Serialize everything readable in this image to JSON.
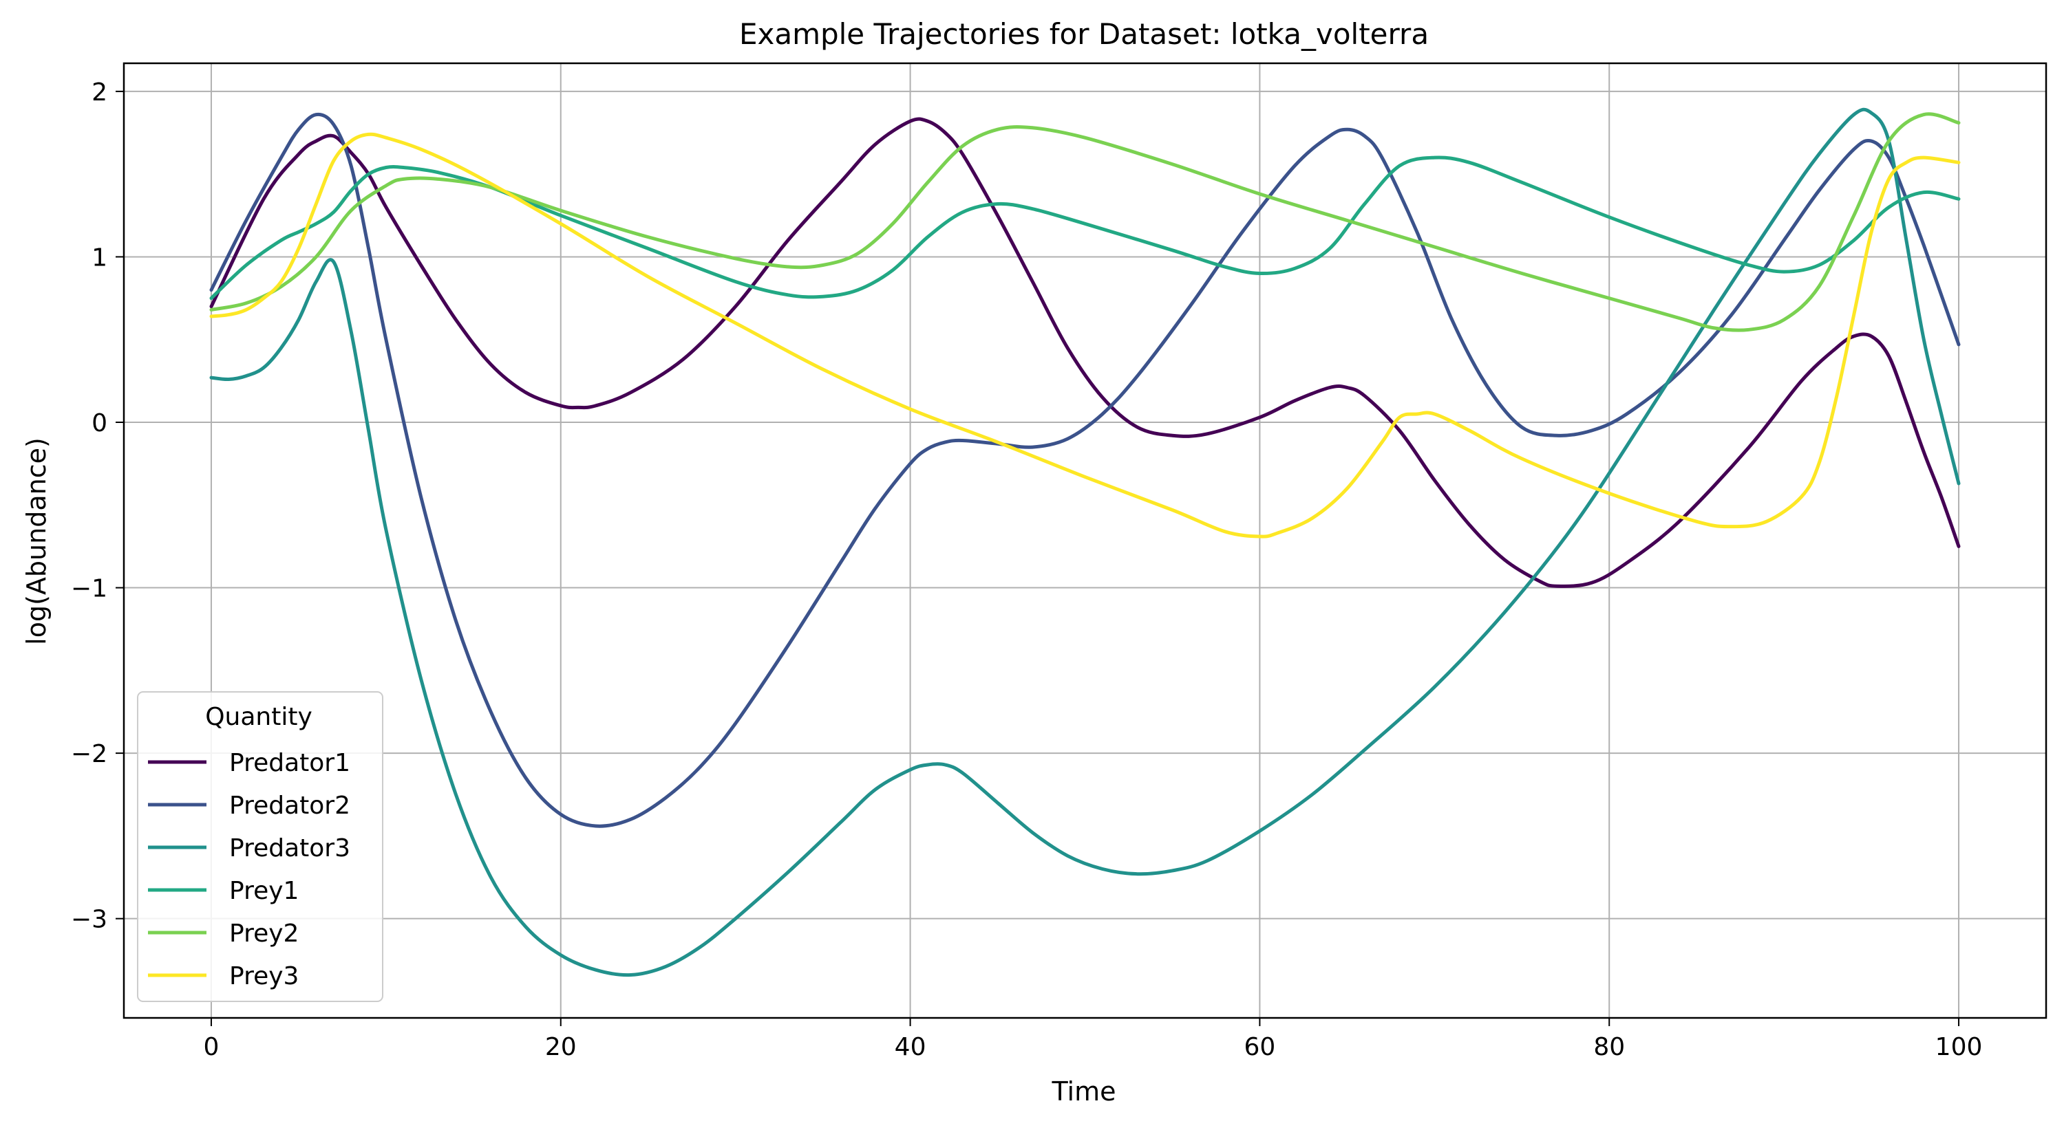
{
  "chart_data": {
    "type": "line",
    "title": "Example Trajectories for Dataset: lotka_volterra",
    "xlabel": "Time",
    "ylabel": "log(Abundance)",
    "xlim": [
      -5,
      105
    ],
    "ylim": [
      -3.6,
      2.17
    ],
    "xticks": [
      0,
      20,
      40,
      60,
      80,
      100
    ],
    "yticks": [
      -3,
      -2,
      -1,
      0,
      1,
      2
    ],
    "xtick_labels": [
      "0",
      "20",
      "40",
      "60",
      "80",
      "100"
    ],
    "ytick_labels": [
      "−3",
      "−2",
      "−1",
      "0",
      "1",
      "2"
    ],
    "grid": true,
    "legend": {
      "title": "Quantity",
      "position": "lower-left"
    },
    "series": [
      {
        "name": "Predator1",
        "color": "#440154",
        "points": [
          [
            0,
            0.7
          ],
          [
            3,
            1.35
          ],
          [
            5,
            1.62
          ],
          [
            6,
            1.7
          ],
          [
            7,
            1.73
          ],
          [
            8,
            1.63
          ],
          [
            9,
            1.5
          ],
          [
            10,
            1.3
          ],
          [
            12,
            0.95
          ],
          [
            14,
            0.62
          ],
          [
            16,
            0.35
          ],
          [
            18,
            0.18
          ],
          [
            20,
            0.1
          ],
          [
            21,
            0.09
          ],
          [
            22,
            0.1
          ],
          [
            24,
            0.18
          ],
          [
            27,
            0.38
          ],
          [
            30,
            0.7
          ],
          [
            33,
            1.1
          ],
          [
            36,
            1.45
          ],
          [
            38,
            1.68
          ],
          [
            40,
            1.82
          ],
          [
            41,
            1.82
          ],
          [
            42,
            1.75
          ],
          [
            43,
            1.62
          ],
          [
            45,
            1.25
          ],
          [
            47,
            0.85
          ],
          [
            49,
            0.45
          ],
          [
            51,
            0.15
          ],
          [
            53,
            -0.03
          ],
          [
            55,
            -0.08
          ],
          [
            57,
            -0.07
          ],
          [
            60,
            0.03
          ],
          [
            62,
            0.13
          ],
          [
            64,
            0.21
          ],
          [
            65,
            0.21
          ],
          [
            66,
            0.16
          ],
          [
            68,
            -0.05
          ],
          [
            70,
            -0.35
          ],
          [
            72,
            -0.62
          ],
          [
            74,
            -0.83
          ],
          [
            76,
            -0.96
          ],
          [
            77,
            -0.99
          ],
          [
            79,
            -0.97
          ],
          [
            81,
            -0.85
          ],
          [
            84,
            -0.6
          ],
          [
            88,
            -0.15
          ],
          [
            91,
            0.25
          ],
          [
            93,
            0.45
          ],
          [
            94,
            0.52
          ],
          [
            95,
            0.52
          ],
          [
            96,
            0.4
          ],
          [
            97,
            0.12
          ],
          [
            98,
            -0.18
          ],
          [
            99,
            -0.45
          ],
          [
            100,
            -0.75
          ]
        ]
      },
      {
        "name": "Predator2",
        "color": "#3b528b",
        "points": [
          [
            0,
            0.8
          ],
          [
            2,
            1.22
          ],
          [
            4,
            1.6
          ],
          [
            5,
            1.77
          ],
          [
            6,
            1.86
          ],
          [
            7,
            1.8
          ],
          [
            8,
            1.55
          ],
          [
            9,
            1.05
          ],
          [
            10,
            0.5
          ],
          [
            12,
            -0.45
          ],
          [
            14,
            -1.2
          ],
          [
            16,
            -1.75
          ],
          [
            18,
            -2.15
          ],
          [
            20,
            -2.37
          ],
          [
            22,
            -2.44
          ],
          [
            24,
            -2.4
          ],
          [
            26,
            -2.27
          ],
          [
            28,
            -2.08
          ],
          [
            30,
            -1.82
          ],
          [
            33,
            -1.35
          ],
          [
            36,
            -0.85
          ],
          [
            38,
            -0.52
          ],
          [
            40,
            -0.25
          ],
          [
            41,
            -0.16
          ],
          [
            42,
            -0.12
          ],
          [
            43,
            -0.11
          ],
          [
            45,
            -0.13
          ],
          [
            47,
            -0.15
          ],
          [
            49,
            -0.1
          ],
          [
            51,
            0.05
          ],
          [
            53,
            0.28
          ],
          [
            56,
            0.7
          ],
          [
            59,
            1.15
          ],
          [
            62,
            1.55
          ],
          [
            64,
            1.73
          ],
          [
            65,
            1.77
          ],
          [
            66,
            1.73
          ],
          [
            67,
            1.6
          ],
          [
            69,
            1.15
          ],
          [
            71,
            0.62
          ],
          [
            73,
            0.22
          ],
          [
            75,
            -0.03
          ],
          [
            77,
            -0.08
          ],
          [
            79,
            -0.05
          ],
          [
            81,
            0.05
          ],
          [
            84,
            0.3
          ],
          [
            87,
            0.65
          ],
          [
            90,
            1.1
          ],
          [
            92,
            1.4
          ],
          [
            94,
            1.65
          ],
          [
            95,
            1.7
          ],
          [
            96,
            1.6
          ],
          [
            97,
            1.35
          ],
          [
            98,
            1.07
          ],
          [
            99,
            0.77
          ],
          [
            100,
            0.47
          ]
        ]
      },
      {
        "name": "Predator3",
        "color": "#21918c",
        "points": [
          [
            0,
            0.27
          ],
          [
            1,
            0.26
          ],
          [
            2,
            0.28
          ],
          [
            3,
            0.33
          ],
          [
            4,
            0.45
          ],
          [
            5,
            0.62
          ],
          [
            6,
            0.85
          ],
          [
            7,
            0.97
          ],
          [
            8,
            0.55
          ],
          [
            9,
            -0.05
          ],
          [
            10,
            -0.65
          ],
          [
            12,
            -1.55
          ],
          [
            14,
            -2.25
          ],
          [
            16,
            -2.75
          ],
          [
            18,
            -3.05
          ],
          [
            20,
            -3.22
          ],
          [
            22,
            -3.31
          ],
          [
            24,
            -3.34
          ],
          [
            26,
            -3.29
          ],
          [
            28,
            -3.17
          ],
          [
            30,
            -3.0
          ],
          [
            33,
            -2.72
          ],
          [
            36,
            -2.42
          ],
          [
            38,
            -2.22
          ],
          [
            40,
            -2.1
          ],
          [
            41,
            -2.07
          ],
          [
            42,
            -2.07
          ],
          [
            43,
            -2.12
          ],
          [
            45,
            -2.3
          ],
          [
            47,
            -2.48
          ],
          [
            49,
            -2.62
          ],
          [
            51,
            -2.7
          ],
          [
            53,
            -2.73
          ],
          [
            55,
            -2.71
          ],
          [
            57,
            -2.65
          ],
          [
            60,
            -2.47
          ],
          [
            63,
            -2.25
          ],
          [
            66,
            -1.98
          ],
          [
            70,
            -1.6
          ],
          [
            74,
            -1.15
          ],
          [
            78,
            -0.62
          ],
          [
            82,
            0.02
          ],
          [
            86,
            0.68
          ],
          [
            90,
            1.32
          ],
          [
            92,
            1.62
          ],
          [
            94,
            1.86
          ],
          [
            95,
            1.87
          ],
          [
            96,
            1.7
          ],
          [
            97,
            1.1
          ],
          [
            98,
            0.5
          ],
          [
            99,
            0.05
          ],
          [
            100,
            -0.37
          ]
        ]
      },
      {
        "name": "Prey1",
        "color": "#22a884",
        "points": [
          [
            0,
            0.75
          ],
          [
            2,
            0.95
          ],
          [
            4,
            1.1
          ],
          [
            5,
            1.15
          ],
          [
            6,
            1.2
          ],
          [
            7,
            1.27
          ],
          [
            8,
            1.4
          ],
          [
            9,
            1.5
          ],
          [
            10,
            1.54
          ],
          [
            11,
            1.54
          ],
          [
            13,
            1.51
          ],
          [
            16,
            1.42
          ],
          [
            20,
            1.25
          ],
          [
            25,
            1.05
          ],
          [
            30,
            0.85
          ],
          [
            33,
            0.77
          ],
          [
            35,
            0.76
          ],
          [
            37,
            0.8
          ],
          [
            39,
            0.92
          ],
          [
            41,
            1.12
          ],
          [
            43,
            1.27
          ],
          [
            45,
            1.32
          ],
          [
            47,
            1.29
          ],
          [
            50,
            1.2
          ],
          [
            55,
            1.04
          ],
          [
            58,
            0.94
          ],
          [
            60,
            0.9
          ],
          [
            62,
            0.93
          ],
          [
            64,
            1.05
          ],
          [
            66,
            1.32
          ],
          [
            68,
            1.55
          ],
          [
            70,
            1.6
          ],
          [
            72,
            1.57
          ],
          [
            75,
            1.45
          ],
          [
            80,
            1.24
          ],
          [
            85,
            1.05
          ],
          [
            88,
            0.95
          ],
          [
            90,
            0.91
          ],
          [
            92,
            0.95
          ],
          [
            94,
            1.1
          ],
          [
            96,
            1.3
          ],
          [
            98,
            1.39
          ],
          [
            100,
            1.35
          ]
        ]
      },
      {
        "name": "Prey2",
        "color": "#7ad151",
        "points": [
          [
            0,
            0.68
          ],
          [
            2,
            0.72
          ],
          [
            4,
            0.82
          ],
          [
            6,
            1.0
          ],
          [
            8,
            1.28
          ],
          [
            10,
            1.43
          ],
          [
            11,
            1.47
          ],
          [
            13,
            1.47
          ],
          [
            16,
            1.42
          ],
          [
            20,
            1.28
          ],
          [
            25,
            1.12
          ],
          [
            30,
            0.99
          ],
          [
            33,
            0.94
          ],
          [
            35,
            0.95
          ],
          [
            37,
            1.02
          ],
          [
            39,
            1.2
          ],
          [
            41,
            1.45
          ],
          [
            43,
            1.67
          ],
          [
            45,
            1.77
          ],
          [
            47,
            1.78
          ],
          [
            50,
            1.72
          ],
          [
            55,
            1.56
          ],
          [
            60,
            1.38
          ],
          [
            65,
            1.22
          ],
          [
            70,
            1.06
          ],
          [
            75,
            0.9
          ],
          [
            80,
            0.75
          ],
          [
            84,
            0.63
          ],
          [
            86,
            0.57
          ],
          [
            88,
            0.56
          ],
          [
            90,
            0.62
          ],
          [
            92,
            0.82
          ],
          [
            94,
            1.25
          ],
          [
            96,
            1.7
          ],
          [
            98,
            1.86
          ],
          [
            100,
            1.81
          ]
        ]
      },
      {
        "name": "Prey3",
        "color": "#fde725",
        "points": [
          [
            0,
            0.64
          ],
          [
            1,
            0.65
          ],
          [
            2,
            0.68
          ],
          [
            3,
            0.75
          ],
          [
            4,
            0.85
          ],
          [
            5,
            1.05
          ],
          [
            6,
            1.32
          ],
          [
            7,
            1.58
          ],
          [
            8,
            1.7
          ],
          [
            9,
            1.74
          ],
          [
            10,
            1.72
          ],
          [
            12,
            1.65
          ],
          [
            15,
            1.5
          ],
          [
            20,
            1.2
          ],
          [
            25,
            0.88
          ],
          [
            30,
            0.6
          ],
          [
            35,
            0.32
          ],
          [
            40,
            0.08
          ],
          [
            45,
            -0.12
          ],
          [
            50,
            -0.33
          ],
          [
            55,
            -0.53
          ],
          [
            58,
            -0.66
          ],
          [
            60,
            -0.69
          ],
          [
            61,
            -0.67
          ],
          [
            63,
            -0.58
          ],
          [
            65,
            -0.4
          ],
          [
            67,
            -0.12
          ],
          [
            68,
            0.03
          ],
          [
            69,
            0.05
          ],
          [
            70,
            0.05
          ],
          [
            72,
            -0.05
          ],
          [
            75,
            -0.22
          ],
          [
            80,
            -0.43
          ],
          [
            85,
            -0.6
          ],
          [
            87,
            -0.63
          ],
          [
            89,
            -0.6
          ],
          [
            91,
            -0.45
          ],
          [
            92,
            -0.25
          ],
          [
            93,
            0.15
          ],
          [
            94,
            0.65
          ],
          [
            95,
            1.15
          ],
          [
            96,
            1.47
          ],
          [
            97,
            1.57
          ],
          [
            98,
            1.6
          ],
          [
            100,
            1.57
          ]
        ]
      }
    ]
  }
}
